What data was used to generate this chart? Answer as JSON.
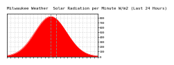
{
  "title": "Milwaukee Weather  Solar Radiation per Minute W/m2 (Last 24 Hours)",
  "bg_color": "#ffffff",
  "plot_bg_color": "#ffffff",
  "line_color": "#ff0000",
  "fill_color": "#ff0000",
  "grid_color": "#bbbbbb",
  "border_color": "#000000",
  "ylim": [
    0,
    880
  ],
  "xlim": [
    0,
    287
  ],
  "peak_x": 138,
  "peak_y": 820,
  "sigma": 50,
  "vline1_x": 138,
  "vline2_x": 155,
  "title_fontsize": 4.2,
  "tick_fontsize": 3.0,
  "y_ticks": [
    0,
    100,
    200,
    300,
    400,
    500,
    600,
    700,
    800
  ],
  "n_x_gridlines": 24
}
